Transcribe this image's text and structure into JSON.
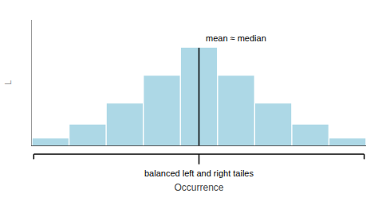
{
  "chart_data": {
    "type": "bar",
    "categories": [
      null,
      null,
      null,
      null,
      null,
      null,
      null,
      null,
      null
    ],
    "values": [
      0.5,
      1.5,
      3.0,
      5.0,
      7.0,
      5.0,
      3.0,
      1.5,
      0.5
    ],
    "color": "#add8e6",
    "ylim": [
      0,
      9.0
    ],
    "xlabel": "Occurrence",
    "ylabel": "L",
    "annotations": [
      {
        "text": "mean ≈ median",
        "x": 4
      },
      {
        "text": "balanced left and right tailes"
      }
    ],
    "grid": false,
    "tick_labels": false
  }
}
